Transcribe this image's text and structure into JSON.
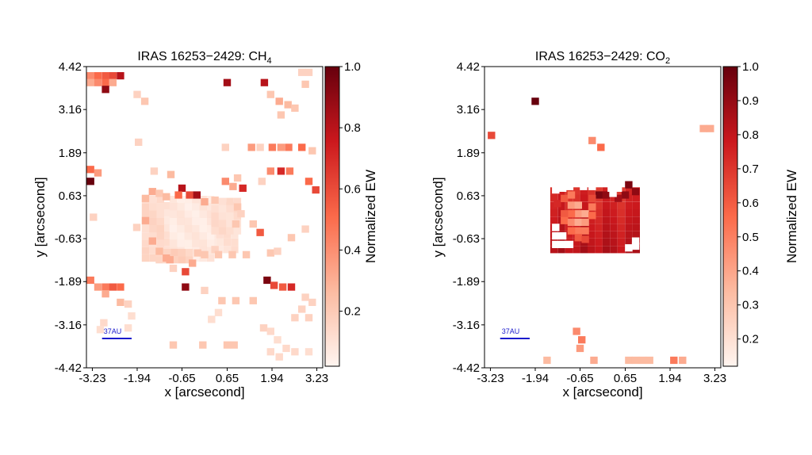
{
  "colors": {
    "cmap_low": "#fff3ec",
    "cmap_mid": "#ec4b36",
    "cmap_high": "#67000d",
    "scalebar": "#1a1acc"
  },
  "chart_data": [
    {
      "type": "heatmap",
      "title_main": "IRAS 16253−2429: CH",
      "title_sub": "4",
      "xlabel": "x [arcsecond]",
      "ylabel": "y [arcsecond]",
      "xlim": [
        -3.4,
        3.4
      ],
      "ylim": [
        -4.42,
        4.42
      ],
      "xticks": [
        "-3.23",
        "-1.94",
        "-0.65",
        "0.65",
        "1.94",
        "3.23"
      ],
      "yticks": [
        "4.42",
        "3.16",
        "1.89",
        "0.63",
        "-0.63",
        "-1.89",
        "-3.16",
        "-4.42"
      ],
      "colorbar_label": "Normalized EW",
      "colorbar_ticks": [
        "0.2",
        "0.4",
        "0.6",
        "0.8",
        "1.0"
      ],
      "colorbar_range": [
        0.02,
        1.0
      ],
      "scalebar": {
        "label": "37AU",
        "x": [
          -2.95,
          -2.1
        ],
        "y": -3.56
      },
      "pixel_size": 0.215,
      "cells": [
        [
          -3.28,
          4.15,
          0.4
        ],
        [
          -3.07,
          4.15,
          0.5
        ],
        [
          -2.85,
          4.15,
          0.55
        ],
        [
          -2.64,
          4.15,
          0.6
        ],
        [
          -2.42,
          4.15,
          0.8
        ],
        [
          -3.28,
          3.95,
          0.3
        ],
        [
          -3.07,
          3.95,
          0.4
        ],
        [
          -2.85,
          3.95,
          0.5
        ],
        [
          -2.64,
          3.95,
          0.3
        ],
        [
          -2.85,
          3.75,
          0.9
        ],
        [
          -1.94,
          3.6,
          0.15
        ],
        [
          -1.72,
          3.4,
          0.2
        ],
        [
          0.65,
          3.95,
          0.85
        ],
        [
          1.72,
          3.95,
          0.8
        ],
        [
          1.9,
          3.6,
          0.2
        ],
        [
          2.15,
          3.4,
          0.3
        ],
        [
          2.4,
          3.3,
          0.25
        ],
        [
          2.6,
          3.2,
          0.2
        ],
        [
          2.8,
          4.25,
          0.15
        ],
        [
          3.0,
          4.25,
          0.15
        ],
        [
          2.9,
          3.9,
          0.2
        ],
        [
          2.2,
          3.0,
          0.2
        ],
        [
          -1.9,
          2.2,
          0.15
        ],
        [
          0.6,
          2.05,
          0.15
        ],
        [
          1.35,
          2.05,
          0.35
        ],
        [
          1.6,
          2.05,
          0.15
        ],
        [
          2.2,
          2.05,
          0.35
        ],
        [
          2.42,
          2.05,
          0.45
        ],
        [
          2.8,
          2.05,
          0.5
        ],
        [
          1.95,
          2.05,
          0.45
        ],
        [
          3.1,
          1.95,
          0.2
        ],
        [
          -3.28,
          1.4,
          0.5
        ],
        [
          -3.07,
          1.3,
          0.35
        ],
        [
          -3.28,
          1.05,
          1.0
        ],
        [
          -1.45,
          1.35,
          0.15
        ],
        [
          -0.97,
          1.25,
          0.25
        ],
        [
          0.6,
          1.05,
          0.4
        ],
        [
          0.82,
          0.9,
          0.3
        ],
        [
          1.1,
          0.85,
          0.7
        ],
        [
          0.95,
          1.15,
          0.2
        ],
        [
          1.9,
          1.35,
          0.4
        ],
        [
          2.2,
          1.35,
          0.7
        ],
        [
          2.45,
          1.35,
          0.45
        ],
        [
          3.0,
          1.05,
          0.5
        ],
        [
          3.2,
          0.8,
          0.6
        ],
        [
          -0.65,
          0.85,
          0.8
        ],
        [
          -0.43,
          0.65,
          0.6
        ],
        [
          -0.22,
          0.65,
          0.85
        ],
        [
          0.0,
          0.45,
          0.3
        ],
        [
          0.3,
          0.5,
          0.2
        ],
        [
          -0.75,
          0.65,
          0.5
        ],
        [
          -3.2,
          0.0,
          0.15
        ],
        [
          -1.95,
          -0.3,
          0.15
        ],
        [
          -1.0,
          -1.25,
          0.3
        ],
        [
          -0.55,
          -1.6,
          0.6
        ],
        [
          -0.35,
          -1.35,
          0.3
        ],
        [
          -0.55,
          -2.05,
          0.9
        ],
        [
          -0.9,
          -1.5,
          0.15
        ],
        [
          0.0,
          -1.1,
          0.2
        ],
        [
          0.8,
          -1.1,
          0.2
        ],
        [
          0.4,
          -1.1,
          0.2
        ],
        [
          1.2,
          -1.1,
          0.2
        ],
        [
          1.9,
          -1.05,
          0.2
        ],
        [
          2.1,
          -1.0,
          0.15
        ],
        [
          1.4,
          -0.2,
          0.2
        ],
        [
          1.6,
          -0.45,
          0.55
        ],
        [
          1.65,
          1.05,
          0.15
        ],
        [
          2.5,
          -0.6,
          0.2
        ],
        [
          2.9,
          -0.35,
          0.15
        ],
        [
          -3.28,
          -1.85,
          0.45
        ],
        [
          -3.07,
          -2.05,
          0.35
        ],
        [
          -2.85,
          -2.05,
          0.45
        ],
        [
          -2.64,
          -2.05,
          0.55
        ],
        [
          -2.42,
          -2.05,
          0.5
        ],
        [
          -2.85,
          -2.25,
          0.3
        ],
        [
          -2.42,
          -2.5,
          0.25
        ],
        [
          -2.2,
          -2.55,
          0.15
        ],
        [
          1.8,
          -1.85,
          0.95
        ],
        [
          2.0,
          -2.0,
          0.6
        ],
        [
          2.25,
          -2.05,
          0.55
        ],
        [
          2.5,
          -2.05,
          0.7
        ],
        [
          0.0,
          -2.15,
          0.15
        ],
        [
          0.5,
          -2.45,
          0.2
        ],
        [
          0.9,
          -2.45,
          0.2
        ],
        [
          1.4,
          -2.45,
          0.2
        ],
        [
          2.9,
          -2.35,
          0.15
        ],
        [
          3.1,
          -2.5,
          0.15
        ],
        [
          2.8,
          -2.7,
          0.15
        ],
        [
          2.6,
          -2.95,
          0.15
        ],
        [
          3.0,
          -2.95,
          0.15
        ],
        [
          -2.1,
          -2.9,
          0.1
        ],
        [
          -2.2,
          -3.25,
          0.1
        ],
        [
          -2.9,
          -3.1,
          0.12
        ],
        [
          -3.0,
          -3.3,
          0.1
        ],
        [
          -0.05,
          -3.75,
          0.2
        ],
        [
          -0.9,
          -3.75,
          0.2
        ],
        [
          0.65,
          -3.75,
          0.2
        ],
        [
          0.85,
          -3.75,
          0.2
        ],
        [
          1.7,
          -3.25,
          0.15
        ],
        [
          1.9,
          -3.35,
          0.12
        ],
        [
          2.1,
          -3.6,
          0.1
        ],
        [
          2.35,
          -3.85,
          0.12
        ],
        [
          2.6,
          -3.95,
          0.12
        ],
        [
          3.0,
          -3.95,
          0.1
        ],
        [
          1.9,
          -3.95,
          0.12
        ],
        [
          2.15,
          -4.1,
          0.12
        ],
        [
          0.2,
          -3.0,
          0.1
        ],
        [
          0.4,
          -2.8,
          0.1
        ]
      ],
      "blobs": [
        {
          "x0": -1.5,
          "x1": 0.9,
          "y0": -0.95,
          "y1": 0.45,
          "v": 0.08
        },
        {
          "x0": -0.9,
          "x1": 0.3,
          "y0": -1.2,
          "y1": 0.6,
          "v": 0.05
        },
        {
          "x0": 0.3,
          "x1": 1.1,
          "y0": -0.4,
          "y1": 0.5,
          "v": 0.1
        },
        {
          "x0": -1.7,
          "x1": -1.2,
          "y0": -1.2,
          "y1": 0.6,
          "v": 0.12
        },
        {
          "x0": -1.3,
          "x1": -0.3,
          "y0": -1.25,
          "y1": -0.95,
          "v": 0.15
        }
      ],
      "blob_edges": [
        [
          -1.7,
          0.55,
          0.25
        ],
        [
          -1.5,
          0.75,
          0.3
        ],
        [
          -1.3,
          0.7,
          0.2
        ],
        [
          -1.1,
          0.6,
          0.25
        ],
        [
          -1.7,
          -0.1,
          0.3
        ],
        [
          -1.5,
          -0.7,
          0.3
        ],
        [
          -1.3,
          -1.0,
          0.25
        ],
        [
          -1.1,
          -1.2,
          0.3
        ],
        [
          -0.2,
          -1.05,
          0.2
        ],
        [
          0.3,
          -0.95,
          0.15
        ],
        [
          0.95,
          0.3,
          0.2
        ],
        [
          1.05,
          0.1,
          0.15
        ],
        [
          0.9,
          -0.2,
          0.2
        ]
      ]
    },
    {
      "type": "heatmap",
      "title_main": "IRAS 16253−2429: CO",
      "title_sub": "2",
      "xlabel": "x [arcsecond]",
      "ylabel": "y [arcsecond]",
      "xlim": [
        -3.4,
        3.4
      ],
      "ylim": [
        -4.42,
        4.42
      ],
      "xticks": [
        "-3.23",
        "-1.94",
        "-0.65",
        "0.65",
        "1.94",
        "3.23"
      ],
      "yticks": [
        "4.42",
        "3.16",
        "1.89",
        "0.63",
        "-0.63",
        "-1.89",
        "-3.16",
        "-4.42"
      ],
      "colorbar_label": "Normalized EW",
      "colorbar_ticks": [
        "0.2",
        "0.3",
        "0.4",
        "0.5",
        "0.6",
        "0.7",
        "0.8",
        "0.9",
        "1.0"
      ],
      "colorbar_range": [
        0.12,
        1.0
      ],
      "scalebar": {
        "label": "37AU",
        "x": [
          -2.95,
          -2.1
        ],
        "y": -3.56
      },
      "pixel_size": 0.215,
      "cells": [
        [
          -1.94,
          3.4,
          1.0
        ],
        [
          -3.2,
          2.4,
          0.6
        ],
        [
          -0.3,
          2.25,
          0.4
        ],
        [
          -0.05,
          2.05,
          0.5
        ],
        [
          2.9,
          2.6,
          0.3
        ],
        [
          3.1,
          2.6,
          0.3
        ],
        [
          -0.6,
          -3.6,
          0.45
        ],
        [
          -0.65,
          -3.85,
          0.35
        ],
        [
          -0.75,
          -3.35,
          0.4
        ],
        [
          -1.6,
          -4.2,
          0.25
        ],
        [
          -0.25,
          -4.2,
          0.3
        ],
        [
          0.75,
          -4.2,
          0.25
        ],
        [
          0.95,
          -4.2,
          0.25
        ],
        [
          1.15,
          -4.2,
          0.25
        ],
        [
          1.35,
          -4.2,
          0.25
        ],
        [
          2.05,
          -4.2,
          0.45
        ],
        [
          2.3,
          -4.2,
          0.3
        ]
      ],
      "region": {
        "x0": -1.4,
        "x1": 1.05,
        "y0": -0.95,
        "y1": 0.85,
        "v": 0.8
      },
      "region_cells": [
        [
          -1.3,
          0.4,
          0.7
        ],
        [
          -1.1,
          0.55,
          0.55
        ],
        [
          -0.9,
          0.65,
          0.45
        ],
        [
          -0.9,
          0.35,
          0.35
        ],
        [
          -0.7,
          0.35,
          0.3
        ],
        [
          -0.7,
          0.1,
          0.35
        ],
        [
          -0.5,
          0.1,
          0.3
        ],
        [
          -0.9,
          0.1,
          0.5
        ],
        [
          -1.1,
          0.1,
          0.55
        ],
        [
          -1.1,
          -0.1,
          0.5
        ],
        [
          -0.9,
          -0.15,
          0.4
        ],
        [
          -0.7,
          -0.15,
          0.3
        ],
        [
          -0.5,
          -0.15,
          0.35
        ],
        [
          -0.7,
          -0.4,
          0.45
        ],
        [
          -0.9,
          -0.4,
          0.5
        ],
        [
          -0.5,
          -0.4,
          0.45
        ],
        [
          -0.7,
          -0.6,
          0.55
        ],
        [
          -0.5,
          -0.65,
          0.6
        ],
        [
          -0.3,
          0.3,
          0.45
        ],
        [
          -0.3,
          0.05,
          0.5
        ],
        [
          -0.1,
          0.65,
          0.95
        ],
        [
          0.1,
          0.65,
          0.9
        ],
        [
          0.75,
          0.95,
          0.95
        ],
        [
          0.95,
          0.75,
          0.9
        ],
        [
          0.65,
          0.65,
          0.9
        ],
        [
          0.45,
          0.55,
          0.85
        ],
        [
          -0.3,
          0.55,
          0.6
        ]
      ],
      "region_blank": [
        [
          -1.35,
          0.8
        ],
        [
          -1.15,
          0.85
        ],
        [
          -0.95,
          0.9
        ],
        [
          -1.35,
          -0.3
        ],
        [
          -1.35,
          -0.55
        ],
        [
          -1.35,
          -0.8
        ],
        [
          -1.15,
          -0.55
        ],
        [
          -1.15,
          -0.8
        ],
        [
          -0.95,
          -0.8
        ],
        [
          0.25,
          0.85
        ],
        [
          0.3,
          0.7
        ],
        [
          0.45,
          0.85
        ],
        [
          0.95,
          -0.7
        ],
        [
          0.95,
          -0.85
        ],
        [
          0.75,
          -0.9
        ],
        [
          -0.3,
          0.9
        ],
        [
          -0.55,
          0.9
        ]
      ]
    }
  ]
}
